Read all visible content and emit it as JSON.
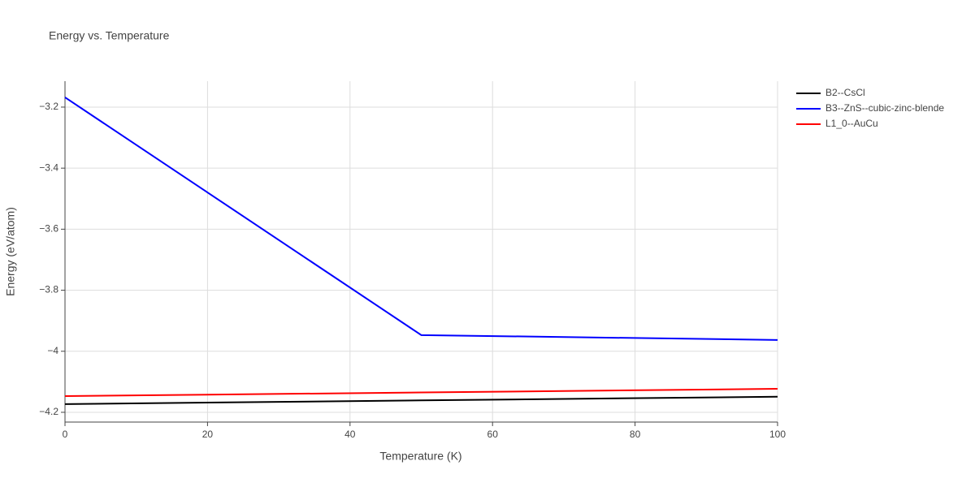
{
  "chart_data": {
    "type": "line",
    "title": "Energy vs. Temperature",
    "x_label": "Temperature (K)",
    "y_label": "Energy (eV/atom)",
    "x": [
      0,
      50,
      100
    ],
    "series": [
      {
        "name": "B2--CsCl",
        "color": "#000000",
        "values": [
          -4.173,
          -4.161,
          -4.149
        ]
      },
      {
        "name": "B3--ZnS--cubic-zinc-blende",
        "color": "#0000ff",
        "values": [
          -3.168,
          -3.947,
          -3.963
        ]
      },
      {
        "name": "L1_0--AuCu",
        "color": "#ff0000",
        "values": [
          -4.147,
          -4.135,
          -4.123
        ]
      }
    ],
    "xlim": [
      0,
      100
    ],
    "xticks": [
      0,
      20,
      40,
      60,
      80,
      100
    ],
    "ylim": [
      -4.232,
      -3.115
    ],
    "yticks": [
      {
        "value": -4.2,
        "label": "−4.2"
      },
      {
        "value": -4,
        "label": "−4"
      },
      {
        "value": -3.8,
        "label": "−3.8"
      },
      {
        "value": -3.6,
        "label": "−3.6"
      },
      {
        "value": -3.4,
        "label": "−3.4"
      },
      {
        "value": -3.2,
        "label": "−3.2"
      }
    ],
    "grid": true,
    "legend": "right"
  }
}
